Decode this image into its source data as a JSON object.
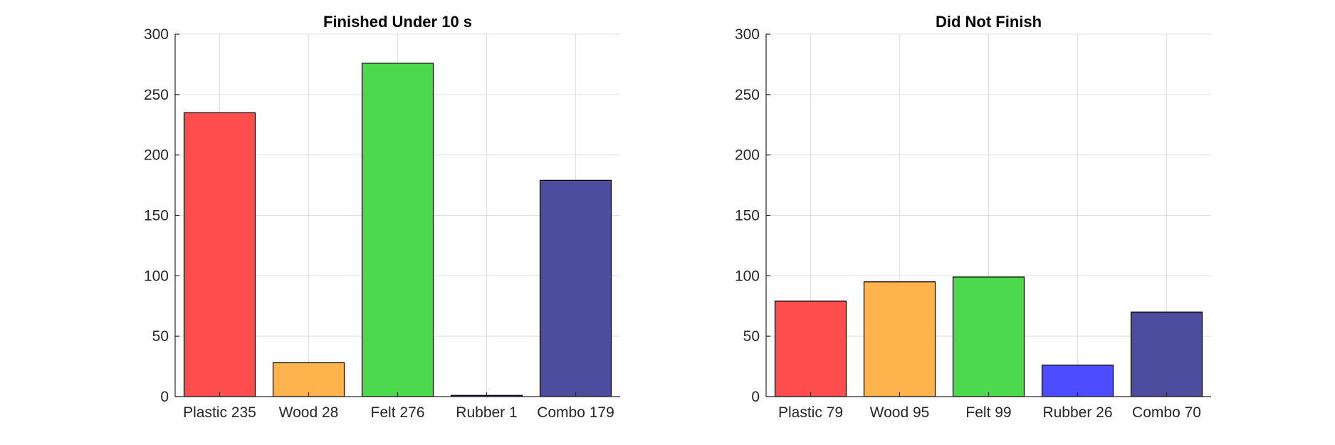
{
  "chart_data": [
    {
      "type": "bar",
      "title": "Finished Under 10 s",
      "categories": [
        "Plastic 235",
        "Wood 28",
        "Felt 276",
        "Rubber 1",
        "Combo 179"
      ],
      "values": [
        235,
        28,
        276,
        1,
        179
      ],
      "colors": [
        "#ff4d4d",
        "#ffb34d",
        "#4dd94d",
        "#4d4dff",
        "#4d4d9f"
      ],
      "ylim": [
        0,
        300
      ],
      "yticks": [
        0,
        50,
        100,
        150,
        200,
        250,
        300
      ],
      "grid": true
    },
    {
      "type": "bar",
      "title": "Did Not Finish",
      "categories": [
        "Plastic 79",
        "Wood 95",
        "Felt 99",
        "Rubber 26",
        "Combo 70"
      ],
      "values": [
        79,
        95,
        99,
        26,
        70
      ],
      "colors": [
        "#ff4d4d",
        "#ffb34d",
        "#4dd94d",
        "#4d4dff",
        "#4d4d9f"
      ],
      "ylim": [
        0,
        300
      ],
      "yticks": [
        0,
        50,
        100,
        150,
        200,
        250,
        300
      ],
      "grid": true
    }
  ]
}
